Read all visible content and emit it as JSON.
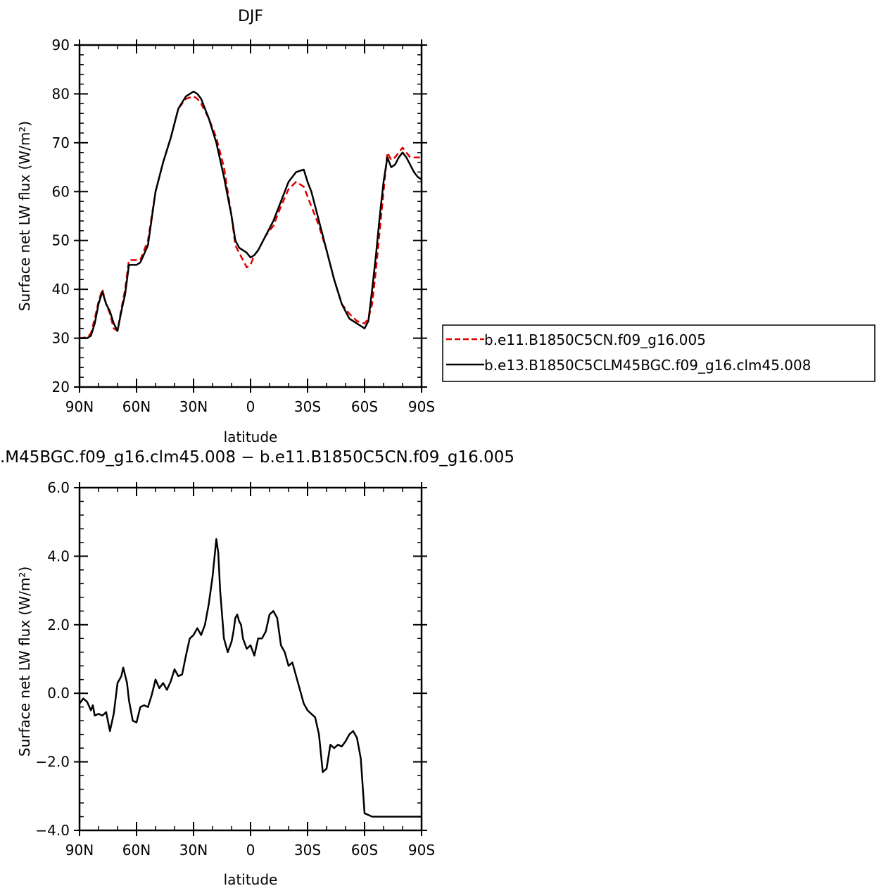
{
  "chart_data": [
    {
      "type": "line",
      "title": "DJF",
      "xlabel": "latitude",
      "ylabel": "Surface net LW flux (W/m²)",
      "xlim": [
        -90,
        90
      ],
      "ylim": [
        20,
        90
      ],
      "x_ticks": [
        -90,
        -60,
        -30,
        0,
        30,
        60,
        90
      ],
      "x_tick_labels": [
        "90N",
        "60N",
        "30N",
        "0",
        "30S",
        "60S",
        "90S"
      ],
      "y_ticks": [
        20,
        30,
        40,
        50,
        60,
        70,
        80,
        90
      ],
      "y_tick_labels": [
        "20",
        "30",
        "40",
        "50",
        "60",
        "70",
        "80",
        "90"
      ],
      "legend_position": "right",
      "series": [
        {
          "name": "b.e11.B1850C5CN.f09_g16.005",
          "color": "#e00000",
          "dash": true,
          "x": [
            -90,
            -86,
            -84,
            -82,
            -80,
            -78,
            -76,
            -74,
            -72,
            -70,
            -68,
            -66,
            -64,
            -60,
            -58,
            -54,
            -50,
            -46,
            -42,
            -38,
            -34,
            -30,
            -28,
            -26,
            -22,
            -18,
            -14,
            -10,
            -8,
            -6,
            -4,
            -2,
            0,
            2,
            4,
            8,
            12,
            16,
            20,
            24,
            28,
            30,
            32,
            36,
            40,
            44,
            48,
            52,
            56,
            60,
            62,
            64,
            66,
            68,
            70,
            72,
            74,
            76,
            78,
            80,
            82,
            84,
            86,
            88,
            90
          ],
          "y": [
            30,
            30.2,
            31,
            34,
            37.5,
            40,
            37,
            35,
            32,
            31.5,
            36,
            40,
            46,
            46,
            46,
            50,
            60,
            66,
            71,
            77,
            79,
            79.5,
            79,
            78,
            75,
            71,
            65,
            55,
            49,
            47.5,
            46,
            44.5,
            45,
            47,
            48,
            51,
            53,
            57,
            60.5,
            62,
            61,
            59,
            57,
            53,
            48,
            42,
            37,
            35,
            33.5,
            33,
            34,
            37,
            44,
            52,
            60,
            68,
            66.5,
            67,
            68,
            69,
            68,
            67,
            67,
            67,
            67
          ]
        },
        {
          "name": "b.e13.B1850C5CLM45BGC.f09_g16.clm45.008",
          "color": "#000000",
          "dash": false,
          "x": [
            -90,
            -86,
            -84,
            -82,
            -80,
            -78,
            -76,
            -74,
            -72,
            -70,
            -68,
            -66,
            -64,
            -60,
            -58,
            -54,
            -50,
            -46,
            -42,
            -38,
            -34,
            -30,
            -28,
            -26,
            -22,
            -18,
            -14,
            -10,
            -8,
            -6,
            -4,
            -2,
            0,
            2,
            4,
            8,
            12,
            16,
            20,
            24,
            28,
            30,
            32,
            36,
            40,
            44,
            48,
            52,
            56,
            60,
            62,
            64,
            66,
            68,
            70,
            72,
            74,
            76,
            78,
            80,
            82,
            84,
            86,
            88,
            90
          ],
          "y": [
            30,
            30,
            30.5,
            33,
            37,
            39.5,
            37,
            35.5,
            33,
            31.5,
            35.5,
            39,
            45,
            45,
            45.5,
            49,
            60,
            66,
            71,
            77,
            79.5,
            80.5,
            80,
            79,
            75,
            70,
            63,
            55,
            50,
            48.5,
            48,
            47.5,
            46.5,
            47,
            48,
            51,
            54,
            58,
            62,
            64,
            64.5,
            62,
            60,
            54,
            48,
            42,
            37,
            34,
            33,
            32,
            33.5,
            40,
            47,
            55,
            62,
            67,
            65,
            65.5,
            67,
            68,
            67,
            65.5,
            64,
            63,
            62.5
          ]
        }
      ]
    },
    {
      "type": "line",
      "title": ".M45BGC.f09_g16.clm45.008 − b.e11.B1850C5CN.f09_g16.005",
      "xlabel": "latitude",
      "ylabel": "Surface net LW flux (W/m²)",
      "xlim": [
        -90,
        90
      ],
      "ylim": [
        -4,
        6
      ],
      "x_ticks": [
        -90,
        -60,
        -30,
        0,
        30,
        60,
        90
      ],
      "x_tick_labels": [
        "90N",
        "60N",
        "30N",
        "0",
        "30S",
        "60S",
        "90S"
      ],
      "y_ticks": [
        -4,
        -2,
        0,
        2,
        4,
        6
      ],
      "y_tick_labels": [
        "−4.0",
        "−2.0",
        "0.0",
        "2.0",
        "4.0",
        "6.0"
      ],
      "series": [
        {
          "name": "",
          "color": "#000000",
          "dash": false,
          "x": [
            -90,
            -88,
            -86,
            -84,
            -83,
            -82,
            -80,
            -78,
            -76,
            -74,
            -72,
            -70,
            -68,
            -67,
            -65,
            -64,
            -62,
            -60,
            -58,
            -56,
            -54,
            -52,
            -50,
            -48,
            -46,
            -44,
            -42,
            -40,
            -38,
            -36,
            -34,
            -32,
            -30,
            -28,
            -26,
            -24,
            -22,
            -20,
            -18,
            -17,
            -16,
            -14,
            -12,
            -10,
            -9,
            -8,
            -7,
            -6,
            -5,
            -4,
            -2,
            0,
            2,
            4,
            6,
            8,
            10,
            12,
            14,
            16,
            18,
            20,
            22,
            24,
            26,
            28,
            30,
            32,
            34,
            36,
            38,
            40,
            42,
            44,
            46,
            48,
            50,
            52,
            54,
            56,
            58,
            60,
            62,
            64,
            66,
            68,
            70,
            72,
            74,
            76,
            78,
            80,
            82,
            84,
            86,
            88,
            90
          ],
          "y": [
            -0.3,
            -0.15,
            -0.25,
            -0.5,
            -0.35,
            -0.65,
            -0.6,
            -0.65,
            -0.55,
            -1.1,
            -0.6,
            0.3,
            0.5,
            0.75,
            0.3,
            -0.2,
            -0.8,
            -0.85,
            -0.4,
            -0.35,
            -0.4,
            -0.05,
            0.4,
            0.15,
            0.3,
            0.1,
            0.35,
            0.7,
            0.5,
            0.55,
            1.1,
            1.6,
            1.7,
            1.9,
            1.7,
            2,
            2.6,
            3.4,
            4.5,
            4.1,
            3,
            1.6,
            1.2,
            1.5,
            1.8,
            2.2,
            2.3,
            2.1,
            2,
            1.6,
            1.3,
            1.4,
            1.1,
            1.6,
            1.6,
            1.8,
            2.3,
            2.4,
            2.2,
            1.4,
            1.2,
            0.8,
            0.9,
            0.5,
            0.1,
            -0.3,
            -0.5,
            -0.6,
            -0.7,
            -1.2,
            -2.3,
            -2.2,
            -1.5,
            -1.6,
            -1.5,
            -1.55,
            -1.4,
            -1.2,
            -1.1,
            -1.3,
            -1.9,
            -3.5,
            -3.55,
            -3.6,
            -3.6,
            -3.6,
            -3.6,
            -3.6,
            -3.6,
            -3.6,
            -3.6,
            -3.6,
            -3.6,
            -3.6,
            -3.6,
            -3.6,
            -3.6
          ]
        }
      ]
    }
  ]
}
